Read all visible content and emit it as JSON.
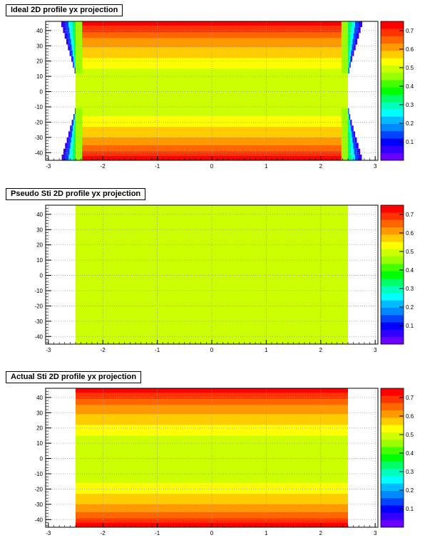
{
  "chart_data": [
    {
      "type": "heatmap",
      "title": "Ideal 2D profile yx projection",
      "xlabel": "",
      "ylabel": "",
      "xlim": [
        -3.05,
        3.05
      ],
      "ylim": [
        -45,
        46
      ],
      "x_ticks": [
        "-3",
        "-2",
        "-1",
        "0",
        "1",
        "2",
        "3"
      ],
      "y_ticks": [
        "-40",
        "-30",
        "-20",
        "-10",
        "0",
        "10",
        "20",
        "30",
        "40"
      ],
      "z_ticks": [
        "0.1",
        "0.2",
        "0.3",
        "0.4",
        "0.5",
        "0.6",
        "0.7"
      ],
      "zlim": [
        0,
        0.75
      ],
      "grid": true,
      "x_extent": [
        -2.5,
        2.5
      ],
      "edge_falloff": true,
      "y_bands": [
        {
          "y": [
            -45,
            -42
          ],
          "value": 0.73
        },
        {
          "y": [
            -42,
            -39
          ],
          "value": 0.69
        },
        {
          "y": [
            -39,
            -35
          ],
          "value": 0.66
        },
        {
          "y": [
            -35,
            -30
          ],
          "value": 0.62
        },
        {
          "y": [
            -30,
            -23
          ],
          "value": 0.58
        },
        {
          "y": [
            -23,
            -16
          ],
          "value": 0.54
        },
        {
          "y": [
            -16,
            15
          ],
          "value": 0.5
        },
        {
          "y": [
            15,
            22
          ],
          "value": 0.54
        },
        {
          "y": [
            22,
            29
          ],
          "value": 0.58
        },
        {
          "y": [
            29,
            35
          ],
          "value": 0.62
        },
        {
          "y": [
            35,
            39
          ],
          "value": 0.66
        },
        {
          "y": [
            39,
            43
          ],
          "value": 0.69
        },
        {
          "y": [
            43,
            46
          ],
          "value": 0.73
        }
      ]
    },
    {
      "type": "heatmap",
      "title": "Pseudo Sti 2D profile yx projection",
      "xlabel": "",
      "ylabel": "",
      "xlim": [
        -3.05,
        3.05
      ],
      "ylim": [
        -45,
        46
      ],
      "x_ticks": [
        "-3",
        "-2",
        "-1",
        "0",
        "1",
        "2",
        "3"
      ],
      "y_ticks": [
        "-40",
        "-30",
        "-20",
        "-10",
        "0",
        "10",
        "20",
        "30",
        "40"
      ],
      "z_ticks": [
        "0.1",
        "0.2",
        "0.3",
        "0.4",
        "0.5",
        "0.6",
        "0.7"
      ],
      "zlim": [
        0,
        0.75
      ],
      "grid": true,
      "x_extent": [
        -2.5,
        2.5
      ],
      "edge_falloff": false,
      "y_bands": [
        {
          "y": [
            -45,
            46
          ],
          "value": 0.5
        }
      ]
    },
    {
      "type": "heatmap",
      "title": "Actual Sti 2D profile yx projection",
      "xlabel": "",
      "ylabel": "",
      "xlim": [
        -3.05,
        3.05
      ],
      "ylim": [
        -45,
        46
      ],
      "x_ticks": [
        "-3",
        "-2",
        "-1",
        "0",
        "1",
        "2",
        "3"
      ],
      "y_ticks": [
        "-40",
        "-30",
        "-20",
        "-10",
        "0",
        "10",
        "20",
        "30",
        "40"
      ],
      "z_ticks": [
        "0.1",
        "0.2",
        "0.3",
        "0.4",
        "0.5",
        "0.6",
        "0.7"
      ],
      "zlim": [
        0,
        0.75
      ],
      "grid": true,
      "x_extent": [
        -2.5,
        2.5
      ],
      "edge_falloff": false,
      "y_bands": [
        {
          "y": [
            -45,
            -42
          ],
          "value": 0.73
        },
        {
          "y": [
            -42,
            -39
          ],
          "value": 0.69
        },
        {
          "y": [
            -39,
            -35
          ],
          "value": 0.66
        },
        {
          "y": [
            -35,
            -30
          ],
          "value": 0.62
        },
        {
          "y": [
            -30,
            -23
          ],
          "value": 0.58
        },
        {
          "y": [
            -23,
            -16
          ],
          "value": 0.54
        },
        {
          "y": [
            -16,
            15
          ],
          "value": 0.5
        },
        {
          "y": [
            15,
            22
          ],
          "value": 0.54
        },
        {
          "y": [
            22,
            29
          ],
          "value": 0.58
        },
        {
          "y": [
            29,
            35
          ],
          "value": 0.62
        },
        {
          "y": [
            35,
            39
          ],
          "value": 0.66
        },
        {
          "y": [
            39,
            43
          ],
          "value": 0.69
        },
        {
          "y": [
            43,
            46
          ],
          "value": 0.73
        }
      ]
    }
  ],
  "palette": [
    "#6a00ff",
    "#3300ff",
    "#0000ff",
    "#0044ff",
    "#0088ff",
    "#00bbff",
    "#00ffff",
    "#00ffbb",
    "#00ff66",
    "#00ff00",
    "#44ff00",
    "#99ff00",
    "#ccff00",
    "#ffff00",
    "#ffcc00",
    "#ff9900",
    "#ff6600",
    "#ff3300",
    "#ff0000"
  ]
}
